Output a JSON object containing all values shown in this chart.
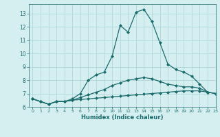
{
  "title": "",
  "xlabel": "Humidex (Indice chaleur)",
  "ylabel": "",
  "xlim": [
    -0.5,
    23
  ],
  "ylim": [
    6,
    13.7
  ],
  "yticks": [
    6,
    7,
    8,
    9,
    10,
    11,
    12,
    13
  ],
  "xticks": [
    0,
    1,
    2,
    3,
    4,
    5,
    6,
    7,
    8,
    9,
    10,
    11,
    12,
    13,
    14,
    15,
    16,
    17,
    18,
    19,
    20,
    21,
    22,
    23
  ],
  "bg_color": "#d5eef0",
  "line_color": "#1a6b6b",
  "grid_color": "#b0d8dc",
  "series": [
    {
      "x": [
        0,
        1,
        2,
        3,
        4,
        5,
        6,
        7,
        8,
        9,
        10,
        11,
        12,
        13,
        14,
        15,
        16,
        17,
        18,
        19,
        20,
        21,
        22,
        23
      ],
      "y": [
        6.6,
        6.4,
        6.2,
        6.4,
        6.4,
        6.5,
        6.55,
        6.6,
        6.65,
        6.7,
        6.75,
        6.8,
        6.85,
        6.9,
        6.95,
        7.0,
        7.05,
        7.1,
        7.15,
        7.2,
        7.2,
        7.2,
        7.1,
        7.0
      ]
    },
    {
      "x": [
        0,
        1,
        2,
        3,
        4,
        5,
        6,
        7,
        8,
        9,
        10,
        11,
        12,
        13,
        14,
        15,
        16,
        17,
        18,
        19,
        20,
        21,
        22,
        23
      ],
      "y": [
        6.6,
        6.4,
        6.2,
        6.4,
        6.4,
        6.5,
        6.7,
        6.9,
        7.1,
        7.3,
        7.6,
        7.8,
        8.0,
        8.1,
        8.2,
        8.1,
        7.9,
        7.7,
        7.6,
        7.5,
        7.5,
        7.4,
        7.1,
        7.0
      ]
    },
    {
      "x": [
        0,
        1,
        2,
        3,
        4,
        5,
        6,
        7,
        8,
        9,
        10,
        11,
        12,
        13,
        14,
        15,
        16,
        17,
        18,
        19,
        20,
        21,
        22,
        23
      ],
      "y": [
        6.6,
        6.4,
        6.2,
        6.4,
        6.4,
        6.6,
        7.0,
        8.0,
        8.4,
        8.6,
        9.8,
        12.1,
        11.6,
        13.1,
        13.3,
        12.4,
        10.8,
        9.2,
        8.8,
        8.6,
        8.3,
        7.7,
        7.1,
        7.0
      ]
    }
  ]
}
